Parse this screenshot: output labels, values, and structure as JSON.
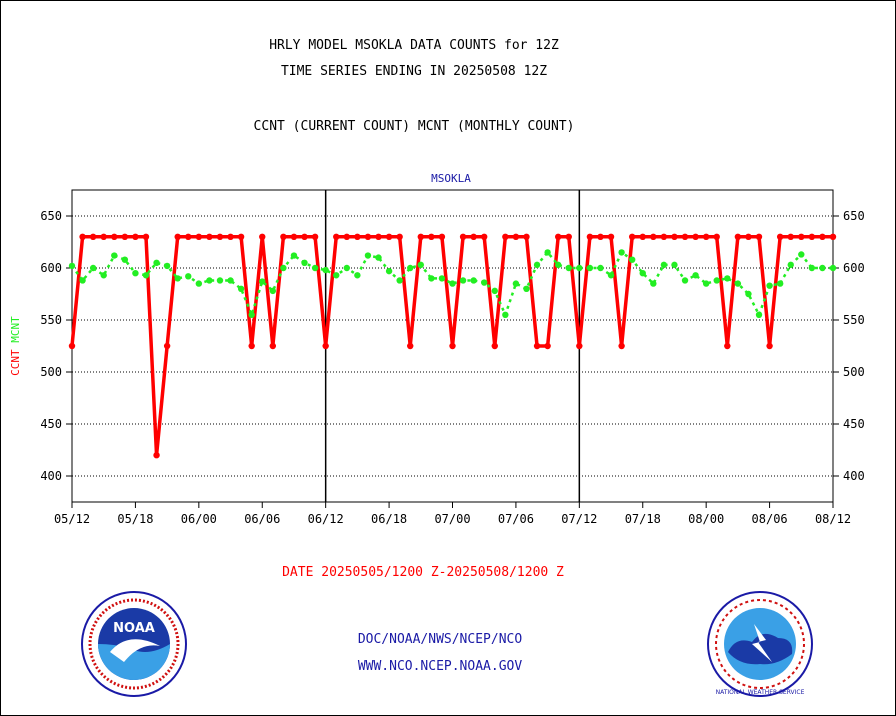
{
  "header": {
    "title_line1": "HRLY MODEL MSOKLA DATA COUNTS for 12Z",
    "title_line2": "TIME SERIES ENDING IN 20250508 12Z",
    "subtitle": "CCNT (CURRENT COUNT) MCNT (MONTHLY COUNT)"
  },
  "footer": {
    "date_range": "DATE 20250505/1200 Z-20250508/1200 Z",
    "link1": "DOC/NOAA/NWS/NCEP/NCO",
    "link2": "WWW.NCO.NCEP.NOAA.GOV"
  },
  "logos": {
    "left": "NOAA",
    "right": "NATIONAL WEATHER SERVICE"
  },
  "colors": {
    "ccnt": "#ff0000",
    "mcnt": "#22ee22",
    "station": "#1a1aa6",
    "grid": "#000000"
  },
  "chart_data": {
    "type": "line",
    "title": "MSOKLA",
    "ylabel_series": [
      {
        "text": "CCNT",
        "color": "#ff0000"
      },
      {
        "text": "MCNT",
        "color": "#22ee22"
      }
    ],
    "xlim": [
      0,
      72
    ],
    "ylim": [
      375,
      675
    ],
    "x_tick_values": [
      0,
      6,
      12,
      18,
      24,
      30,
      36,
      42,
      48,
      54,
      60,
      66,
      72
    ],
    "x_tick_labels": [
      "05/12",
      "05/18",
      "06/00",
      "06/06",
      "06/12",
      "06/18",
      "07/00",
      "07/06",
      "07/12",
      "07/18",
      "08/00",
      "08/06",
      "08/12"
    ],
    "y_ticks": [
      400,
      450,
      500,
      550,
      600,
      650
    ],
    "day_dividers": [
      24,
      48
    ],
    "grid": "horizontal dotted",
    "series": [
      {
        "name": "CCNT",
        "color": "#ff0000",
        "style": "solid",
        "x": [
          0,
          1,
          2,
          3,
          4,
          5,
          6,
          7,
          8,
          9,
          10,
          11,
          12,
          13,
          14,
          15,
          16,
          17,
          18,
          19,
          20,
          21,
          22,
          23,
          24,
          25,
          26,
          27,
          28,
          29,
          30,
          31,
          32,
          33,
          34,
          35,
          36,
          37,
          38,
          39,
          40,
          41,
          42,
          43,
          44,
          45,
          46,
          47,
          48,
          49,
          50,
          51,
          52,
          53,
          54,
          55,
          56,
          57,
          58,
          59,
          60,
          61,
          62,
          63,
          64,
          65,
          66,
          67,
          68,
          69,
          70,
          71,
          72
        ],
        "values": [
          525,
          630,
          630,
          630,
          630,
          630,
          630,
          630,
          420,
          525,
          630,
          630,
          630,
          630,
          630,
          630,
          630,
          525,
          630,
          525,
          630,
          630,
          630,
          630,
          525,
          630,
          630,
          630,
          630,
          630,
          630,
          630,
          525,
          630,
          630,
          630,
          525,
          630,
          630,
          630,
          525,
          630,
          630,
          630,
          525,
          525,
          630,
          630,
          525,
          630,
          630,
          630,
          525,
          630,
          630,
          630,
          630,
          630,
          630,
          630,
          630,
          630,
          525,
          630,
          630,
          630,
          525,
          630,
          630,
          630,
          630,
          630,
          630
        ]
      },
      {
        "name": "MCNT",
        "color": "#22ee22",
        "style": "dotted",
        "x": [
          0,
          1,
          2,
          3,
          4,
          5,
          6,
          7,
          8,
          9,
          10,
          11,
          12,
          13,
          14,
          15,
          16,
          17,
          18,
          19,
          20,
          21,
          22,
          23,
          24,
          25,
          26,
          27,
          28,
          29,
          30,
          31,
          32,
          33,
          34,
          35,
          36,
          37,
          38,
          39,
          40,
          41,
          42,
          43,
          44,
          45,
          46,
          47,
          48,
          49,
          50,
          51,
          52,
          53,
          54,
          55,
          56,
          57,
          58,
          59,
          60,
          61,
          62,
          63,
          64,
          65,
          66,
          67,
          68,
          69,
          70,
          71,
          72
        ],
        "values": [
          602,
          588,
          600,
          593,
          612,
          608,
          595,
          593,
          605,
          602,
          590,
          592,
          585,
          588,
          588,
          588,
          580,
          555,
          587,
          578,
          600,
          612,
          605,
          600,
          598,
          593,
          600,
          593,
          612,
          610,
          597,
          588,
          600,
          603,
          590,
          590,
          585,
          588,
          588,
          586,
          578,
          555,
          585,
          580,
          603,
          615,
          603,
          600,
          600,
          600,
          600,
          593,
          615,
          608,
          595,
          585,
          603,
          603,
          588,
          593,
          585,
          588,
          590,
          585,
          575,
          555,
          583,
          585,
          603,
          613,
          600,
          600,
          600
        ]
      }
    ]
  }
}
